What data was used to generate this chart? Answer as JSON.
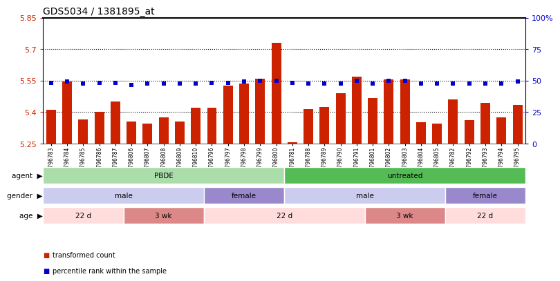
{
  "title": "GDS5034 / 1381895_at",
  "samples": [
    "GSM796783",
    "GSM796784",
    "GSM796785",
    "GSM796786",
    "GSM796787",
    "GSM796806",
    "GSM796807",
    "GSM796808",
    "GSM796809",
    "GSM796810",
    "GSM796796",
    "GSM796797",
    "GSM796798",
    "GSM796799",
    "GSM796800",
    "GSM796781",
    "GSM796788",
    "GSM796789",
    "GSM796790",
    "GSM796791",
    "GSM796801",
    "GSM796802",
    "GSM796803",
    "GSM796804",
    "GSM796805",
    "GSM796782",
    "GSM796792",
    "GSM796793",
    "GSM796794",
    "GSM796795"
  ],
  "bar_values": [
    5.41,
    5.545,
    5.365,
    5.4,
    5.45,
    5.355,
    5.345,
    5.375,
    5.355,
    5.42,
    5.42,
    5.525,
    5.535,
    5.56,
    5.73,
    5.255,
    5.415,
    5.425,
    5.49,
    5.57,
    5.465,
    5.555,
    5.555,
    5.35,
    5.345,
    5.46,
    5.36,
    5.445,
    5.375,
    5.435
  ],
  "dot_values": [
    5.54,
    5.545,
    5.535,
    5.54,
    5.54,
    5.53,
    5.535,
    5.535,
    5.535,
    5.535,
    5.54,
    5.54,
    5.545,
    5.55,
    5.55,
    5.54,
    5.535,
    5.535,
    5.535,
    5.55,
    5.535,
    5.55,
    5.55,
    5.535,
    5.535,
    5.535,
    5.535,
    5.535,
    5.535,
    5.545
  ],
  "ylim": [
    5.25,
    5.85
  ],
  "yticks": [
    5.25,
    5.4,
    5.55,
    5.7,
    5.85
  ],
  "ytick_labels": [
    "5.25",
    "5.4",
    "5.55",
    "5.7",
    "5.85"
  ],
  "right_ytick_labels": [
    "0",
    "25",
    "50",
    "75",
    "100%"
  ],
  "hlines": [
    5.4,
    5.55,
    5.7
  ],
  "bar_color": "#cc2200",
  "dot_color": "#0000cc",
  "agent_groups": [
    {
      "label": "PBDE",
      "start": 0,
      "end": 15,
      "color": "#aaddaa"
    },
    {
      "label": "untreated",
      "start": 15,
      "end": 30,
      "color": "#55bb55"
    }
  ],
  "gender_groups": [
    {
      "label": "male",
      "start": 0,
      "end": 10,
      "color": "#ccccee"
    },
    {
      "label": "female",
      "start": 10,
      "end": 15,
      "color": "#9988cc"
    },
    {
      "label": "male",
      "start": 15,
      "end": 25,
      "color": "#ccccee"
    },
    {
      "label": "female",
      "start": 25,
      "end": 30,
      "color": "#9988cc"
    }
  ],
  "age_groups": [
    {
      "label": "22 d",
      "start": 0,
      "end": 5,
      "color": "#ffdddd"
    },
    {
      "label": "3 wk",
      "start": 5,
      "end": 10,
      "color": "#dd8888"
    },
    {
      "label": "22 d",
      "start": 10,
      "end": 20,
      "color": "#ffdddd"
    },
    {
      "label": "3 wk",
      "start": 20,
      "end": 25,
      "color": "#dd8888"
    },
    {
      "label": "22 d",
      "start": 25,
      "end": 30,
      "color": "#ffdddd"
    }
  ],
  "legend_items": [
    {
      "label": "transformed count",
      "color": "#cc2200"
    },
    {
      "label": "percentile rank within the sample",
      "color": "#0000cc"
    }
  ]
}
